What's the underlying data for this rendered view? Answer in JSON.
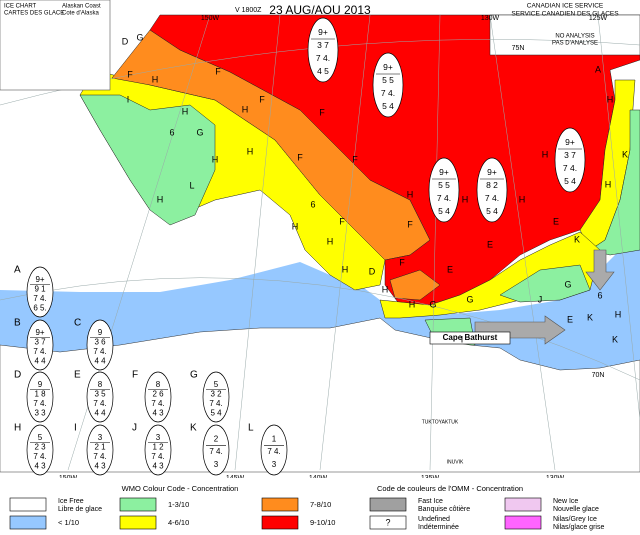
{
  "header": {
    "title_en": "ICE CHART",
    "title_fr": "CARTES DES GLACE",
    "region_en": "Alaskan Coast",
    "region_fr": "Cote d'Alaska",
    "valid": "V 1800Z",
    "date": "23 AUG/AOU 2013",
    "agency_en": "CANADIAN ICE SERVICE",
    "agency_fr": "SERVICE CANADIEN DES GLACES"
  },
  "map": {
    "no_analysis": [
      "NO ANALYSIS",
      "PAS D'ANALYSE"
    ],
    "graticule_labels": [
      "150W",
      "130W",
      "125W",
      "75N",
      "150W",
      "145W",
      "140W",
      "135W",
      "130W",
      "70N"
    ],
    "places": [
      "Cape Bathurst",
      "TUKTOYAKTUK",
      "INUVIK"
    ],
    "region_labels": [
      "D",
      "G",
      "F",
      "H",
      "I",
      "F",
      "H",
      "H",
      "F",
      "G",
      "6",
      "H",
      "H",
      "F",
      "F",
      "L",
      "H",
      "6",
      "H",
      "F",
      "H",
      "F",
      "H",
      "D",
      "F",
      "F",
      "H",
      "H",
      "H",
      "H",
      "A",
      "H",
      "K",
      "H",
      "E",
      "K",
      "E",
      "E",
      "G",
      "G",
      "J",
      "G",
      "H",
      "H",
      "I",
      "6",
      "K",
      "H",
      "E",
      "K"
    ],
    "map_eggs": [
      {
        "lines": [
          "9+",
          "3 7",
          "7 4.",
          "4 5"
        ]
      },
      {
        "lines": [
          "9+",
          "5 5",
          "7 4.",
          "5 4"
        ]
      },
      {
        "lines": [
          "9+",
          "5 5",
          "7 4.",
          "5 4"
        ]
      },
      {
        "lines": [
          "9+",
          "8 2",
          "7 4.",
          "5 4"
        ]
      },
      {
        "lines": [
          "9+",
          "3 7",
          "7 4.",
          "5 4"
        ]
      }
    ]
  },
  "egg_legend": [
    {
      "label": "A",
      "lines": [
        "9+",
        "9 1",
        "7 4.",
        "6 5."
      ]
    },
    {
      "label": "B",
      "lines": [
        "9+",
        "3 7",
        "7 4.",
        "4 4"
      ]
    },
    {
      "label": "C",
      "lines": [
        "9",
        "3 6",
        "7 4.",
        "4 4"
      ]
    },
    {
      "label": "D",
      "lines": [
        "9",
        "1 8",
        "7 4.",
        "3 3"
      ]
    },
    {
      "label": "E",
      "lines": [
        "8",
        "3 5",
        "7 4.",
        "4 4"
      ]
    },
    {
      "label": "F",
      "lines": [
        "8",
        "2 6",
        "7 4.",
        "4 3"
      ]
    },
    {
      "label": "G",
      "lines": [
        "5",
        "3 2",
        "7 4.",
        "5 4"
      ]
    },
    {
      "label": "H",
      "lines": [
        "5",
        "2 3",
        "7 4.",
        "4 3"
      ]
    },
    {
      "label": "I",
      "lines": [
        "3",
        "2 1",
        "7 4.",
        "4 3"
      ]
    },
    {
      "label": "J",
      "lines": [
        "3",
        "1 2",
        "7 4.",
        "4 3"
      ]
    },
    {
      "label": "K",
      "lines": [
        "2",
        "7 4.",
        "3"
      ]
    },
    {
      "label": "L",
      "lines": [
        "1",
        "7 4.",
        "3"
      ]
    }
  ],
  "legend": {
    "title_en": "WMO Colour Code - Concentration",
    "title_fr": "Code de couleurs de l'OMM - Concentration",
    "items": [
      {
        "label": "Ice Free",
        "label_fr": "Libre de glace",
        "color": "#ffffff"
      },
      {
        "label": "< 1/10",
        "color": "#96c8ff"
      },
      {
        "label": "1-3/10",
        "color": "#8cf0a0"
      },
      {
        "label": "4-6/10",
        "color": "#ffff00"
      },
      {
        "label": "7-8/10",
        "color": "#ff8c1e"
      },
      {
        "label": "9-10/10",
        "color": "#ff0000"
      },
      {
        "label": "Fast Ice",
        "label_fr": "Banquise côtière",
        "color": "#a0a0a0"
      },
      {
        "label": "Undefined",
        "label_fr": "Indéterminée",
        "color": "#ffffff",
        "symbol": "?"
      },
      {
        "label": "New Ice",
        "label_fr": "Nouvelle glace",
        "color": "#f0c8f0"
      },
      {
        "label": "Nilas/Grey Ice",
        "label_fr": "Nilas/glace grise",
        "color": "#ff64ff"
      }
    ]
  }
}
